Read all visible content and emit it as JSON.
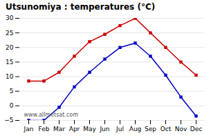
{
  "chart_data": {
    "type": "line",
    "title": "Utsunomiya : temperatures (°C)",
    "categories": [
      "Jan",
      "Feb",
      "Mar",
      "Apr",
      "May",
      "Jun",
      "Jul",
      "Aug",
      "Sep",
      "Oct",
      "Nov",
      "Dec"
    ],
    "series": [
      {
        "color": "#cc0000",
        "marker": "square",
        "values": [
          8.5,
          8.5,
          11.5,
          17.0,
          22.0,
          24.5,
          27.5,
          30.0,
          25.0,
          20.0,
          15.0,
          10.5
        ]
      },
      {
        "color": "#0000cc",
        "marker": "square",
        "values": [
          -5.0,
          -5.0,
          -0.5,
          6.5,
          11.5,
          16.0,
          20.0,
          21.5,
          17.0,
          10.5,
          3.0,
          -3.5
        ]
      }
    ],
    "ylim": [
      -5,
      30
    ],
    "yticks": [
      -5,
      0,
      5,
      10,
      15,
      20,
      25,
      30
    ],
    "grid": true,
    "annotations": [
      "www.allmetsat.com"
    ]
  }
}
